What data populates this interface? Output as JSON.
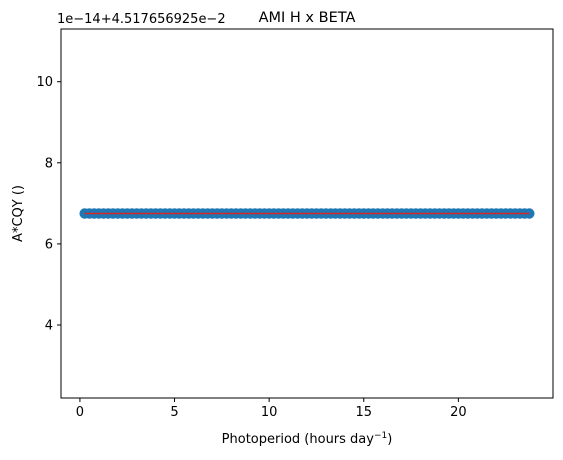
{
  "chart_data": {
    "type": "scatter",
    "title": "AMI H x BETA",
    "xlabel_main": "Photoperiod (hours day",
    "xlabel_sup": "−1",
    "xlabel_end": ")",
    "ylabel": "A*CQY ()",
    "y_offset_text": "1e−14+4.517656925e−2",
    "xlim": [
      -1.0,
      25.0
    ],
    "ylim": [
      2.2,
      11.3
    ],
    "y_units_note": "y values in units of 1e-14 added to offset 4.517656925e-2",
    "x_ticks": [
      0,
      5,
      10,
      15,
      20
    ],
    "x_tick_labels": [
      "0",
      "5",
      "10",
      "15",
      "20"
    ],
    "y_ticks": [
      4,
      6,
      8,
      10
    ],
    "y_tick_labels": [
      "4",
      "6",
      "8",
      "10"
    ],
    "scatter": {
      "x_start": 0.25,
      "x_end": 23.75,
      "count": 95,
      "y": 6.75,
      "color": "#1f77b4"
    },
    "line": {
      "x": [
        0.25,
        23.75
      ],
      "y": [
        6.75,
        6.75
      ],
      "color": "#d62728"
    },
    "grid": false
  }
}
